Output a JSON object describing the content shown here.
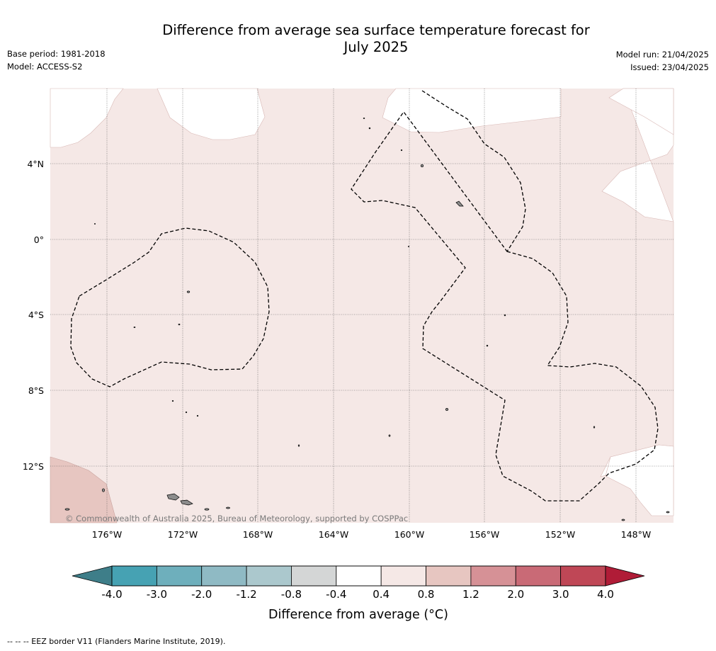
{
  "header": {
    "title_line1": "Difference from average sea surface temperature forecast for",
    "title_line2": "July 2025",
    "base_period": "Base period: 1981-2018",
    "model": "Model: ACCESS-S2",
    "model_run": "Model run: 21/04/2025",
    "issued": "Issued: 23/04/2025"
  },
  "map": {
    "lon_labels": [
      "176°W",
      "172°W",
      "168°W",
      "164°W",
      "160°W",
      "156°W",
      "152°W",
      "148°W"
    ],
    "lat_labels": [
      "4°N",
      "0°",
      "4°S",
      "8°S",
      "12°S"
    ],
    "copyright": "© Commonwealth of Australia 2025, Bureau of Meteorology, supported by COSPPac",
    "colors": {
      "anomaly_0_4_to_0_8": "#f5e8e6",
      "anomaly_0_8_to_1_2": "#e7c6c1",
      "no_anomaly": "#ffffff",
      "land": "#8c8c8c",
      "grid": "#555555",
      "eez": "#000000"
    }
  },
  "colorbar": {
    "tick_labels": [
      "-4.0",
      "-3.0",
      "-2.0",
      "-1.2",
      "-0.8",
      "-0.4",
      "0.4",
      "0.8",
      "1.2",
      "2.0",
      "3.0",
      "4.0"
    ],
    "colors": [
      "#46a2b3",
      "#6eafbc",
      "#8fbac4",
      "#abc8cd",
      "#d4d6d6",
      "#ffffff",
      "#f5e8e6",
      "#e7c6c1",
      "#d69196",
      "#c96a76",
      "#bf4756"
    ],
    "under_color": "#3e7e89",
    "over_color": "#b01c37",
    "label": "Difference from average (°C)"
  },
  "footnote": "--  --  -- EEZ border V11 (Flanders Marine Institute, 2019)."
}
